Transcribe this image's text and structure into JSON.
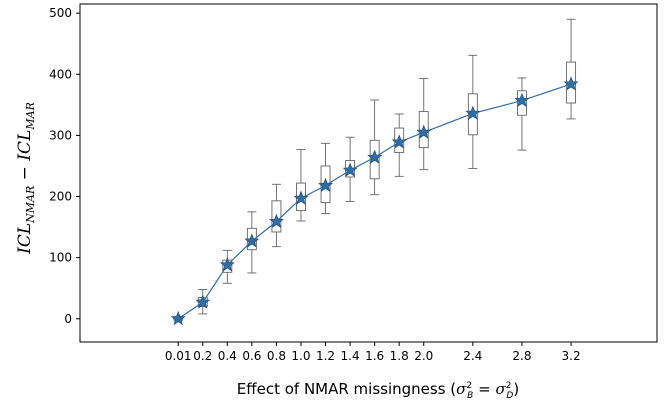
{
  "chart_data": {
    "type": "line",
    "xlabel": "Effect of NMAR missingness (σ²_B = σ²_D)",
    "xlabel_parts": {
      "prefix": "Effect of NMAR missingness (",
      "sigma": "σ",
      "sup": "2",
      "sub_b": "B",
      "eq": " = ",
      "sub_d": "D",
      "suffix": ")"
    },
    "ylabel": "ICL_NMAR − ICL_MAR",
    "ylabel_parts": {
      "a": "ICL",
      "sub_a": "NMAR",
      "minus": " − ",
      "b": "ICL",
      "sub_b": "MAR"
    },
    "xlim": [
      -0.8,
      3.9
    ],
    "ylim": [
      -38,
      515
    ],
    "xticks": [
      0.0,
      0.2,
      0.4,
      0.6,
      0.8,
      1.0,
      1.2,
      1.4,
      1.6,
      1.8,
      2.0,
      2.4,
      2.8,
      3.2
    ],
    "xtick_labels": [
      "0.01",
      "0.2",
      "0.4",
      "0.6",
      "0.8",
      "1.0",
      "1.2",
      "1.4",
      "1.6",
      "1.8",
      "2.0",
      "2.4",
      "2.8",
      "3.2"
    ],
    "yticks": [
      0,
      100,
      200,
      300,
      400,
      500
    ],
    "ytick_labels": [
      "0",
      "100",
      "200",
      "300",
      "400",
      "500"
    ],
    "grid": false,
    "series": [
      {
        "marker": "star",
        "color": "#2f6da3",
        "x": [
          0.0,
          0.2,
          0.4,
          0.6,
          0.8,
          1.0,
          1.2,
          1.4,
          1.6,
          1.8,
          2.0,
          2.4,
          2.8,
          3.2
        ],
        "y": [
          0,
          27,
          88,
          127,
          159,
          197,
          218,
          243,
          264,
          289,
          305,
          336,
          357,
          384
        ]
      }
    ],
    "boxplots": [
      {
        "x": 0.0,
        "whislo": -3,
        "q1": -1,
        "med": 0,
        "q3": 1,
        "whishi": 3
      },
      {
        "x": 0.2,
        "whislo": 8,
        "q1": 20,
        "med": 27,
        "q3": 35,
        "whishi": 48
      },
      {
        "x": 0.4,
        "whislo": 58,
        "q1": 76,
        "med": 88,
        "q3": 96,
        "whishi": 112
      },
      {
        "x": 0.6,
        "whislo": 75,
        "q1": 113,
        "med": 127,
        "q3": 148,
        "whishi": 175
      },
      {
        "x": 0.8,
        "whislo": 118,
        "q1": 142,
        "med": 159,
        "q3": 193,
        "whishi": 220
      },
      {
        "x": 1.0,
        "whislo": 160,
        "q1": 177,
        "med": 197,
        "q3": 222,
        "whishi": 277
      },
      {
        "x": 1.2,
        "whislo": 172,
        "q1": 190,
        "med": 218,
        "q3": 250,
        "whishi": 287
      },
      {
        "x": 1.4,
        "whislo": 192,
        "q1": 232,
        "med": 243,
        "q3": 259,
        "whishi": 297
      },
      {
        "x": 1.6,
        "whislo": 203,
        "q1": 229,
        "med": 264,
        "q3": 292,
        "whishi": 358
      },
      {
        "x": 1.8,
        "whislo": 233,
        "q1": 272,
        "med": 289,
        "q3": 312,
        "whishi": 335
      },
      {
        "x": 2.0,
        "whislo": 244,
        "q1": 280,
        "med": 305,
        "q3": 339,
        "whishi": 393
      },
      {
        "x": 2.4,
        "whislo": 246,
        "q1": 301,
        "med": 336,
        "q3": 368,
        "whishi": 431
      },
      {
        "x": 2.8,
        "whislo": 276,
        "q1": 333,
        "med": 357,
        "q3": 373,
        "whishi": 394
      },
      {
        "x": 3.2,
        "whislo": 327,
        "q1": 353,
        "med": 384,
        "q3": 420,
        "whishi": 490
      }
    ]
  }
}
